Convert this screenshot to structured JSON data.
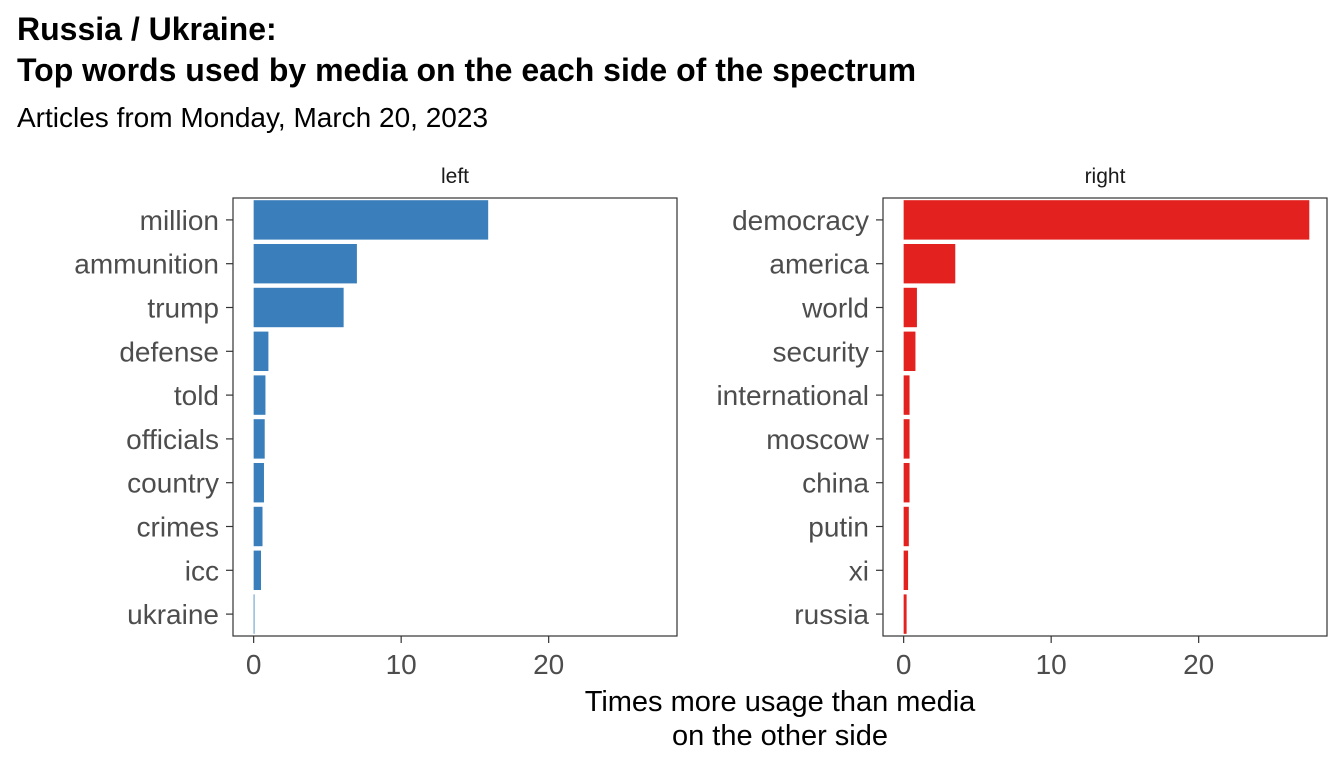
{
  "chart_data": {
    "type": "bar",
    "orientation": "horizontal",
    "title_lines": [
      "Russia / Ukraine:",
      "Top words used by media on the each side of the spectrum"
    ],
    "subtitle": "Articles from Monday, March 20, 2023",
    "xlabel_lines": [
      "Times more usage than media",
      "on the other side"
    ],
    "ylabel": "",
    "xlim": [
      -1.4,
      28.7
    ],
    "x_ticks": [
      0,
      10,
      20
    ],
    "grid": false,
    "legend": "none",
    "panels": [
      {
        "name": "left",
        "color": "#3a7fbb",
        "categories": [
          "million",
          "ammunition",
          "trump",
          "defense",
          "told",
          "officials",
          "country",
          "crimes",
          "icc",
          "ukraine"
        ],
        "values": [
          15.9,
          7.0,
          6.1,
          1.0,
          0.8,
          0.75,
          0.7,
          0.6,
          0.5,
          0.05
        ]
      },
      {
        "name": "right",
        "color": "#e3211e",
        "categories": [
          "democracy",
          "america",
          "world",
          "security",
          "international",
          "moscow",
          "china",
          "putin",
          "xi",
          "russia"
        ],
        "values": [
          27.5,
          3.5,
          0.9,
          0.8,
          0.4,
          0.4,
          0.4,
          0.35,
          0.3,
          0.2
        ]
      }
    ]
  }
}
